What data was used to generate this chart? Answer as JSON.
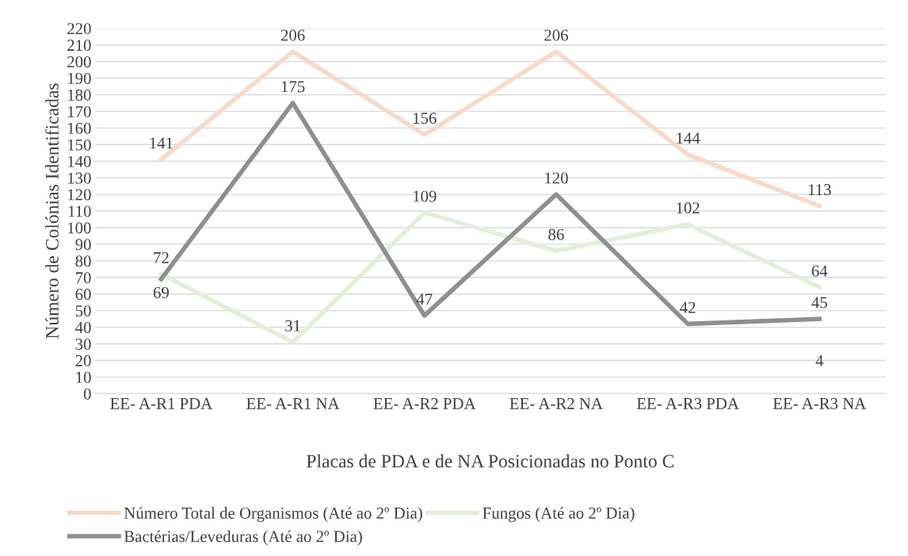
{
  "chart_data": {
    "type": "line",
    "xlabel": "Placas de PDA e de NA Posicionadas no Ponto C",
    "ylabel": "Número de Colónias Identificadas",
    "categories": [
      "EE- A-R1 PDA",
      "EE- A-R1 NA",
      "EE- A-R2 PDA",
      "EE- A-R2 NA",
      "EE- A-R3 PDA",
      "EE- A-R3 NA"
    ],
    "series": [
      {
        "name": "Número Total de Organismos (Até ao 2º Dia)",
        "color": "#f9d9c8",
        "values": [
          141,
          206,
          156,
          206,
          144,
          113
        ]
      },
      {
        "name": "Fungos (Até ao 2º Dia)",
        "color": "#e2efd9",
        "values": [
          72,
          31,
          109,
          86,
          102,
          64
        ]
      },
      {
        "name": "Bactérias/Leveduras (Até ao 2º Dia)",
        "color": "#8f8f8f",
        "values": [
          69,
          175,
          47,
          120,
          42,
          45
        ]
      }
    ],
    "annotations": [
      "4"
    ],
    "ylim": [
      0,
      220
    ],
    "yticks": [
      0,
      10,
      20,
      30,
      40,
      50,
      60,
      70,
      80,
      90,
      100,
      110,
      120,
      130,
      140,
      150,
      160,
      170,
      180,
      190,
      200,
      210,
      220
    ],
    "grid": "y",
    "legend": "bottom",
    "data_labels": true,
    "marker": "none",
    "line_style": "solid"
  }
}
